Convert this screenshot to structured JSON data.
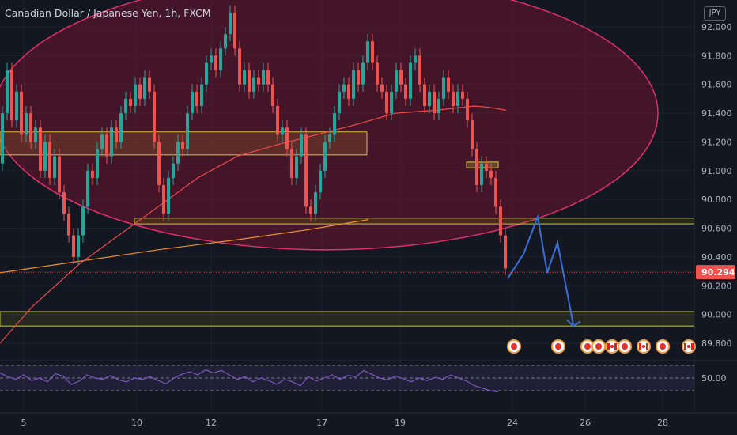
{
  "chart_data": {
    "type": "candlestick",
    "title": "Canadian Dollar / Japanese Yen, 1h, FXCM",
    "currency": "JPY",
    "price_axis": {
      "ticks": [
        92.0,
        91.8,
        91.6,
        91.4,
        91.2,
        91.0,
        90.8,
        90.6,
        90.4,
        90.2,
        90.0,
        89.8
      ],
      "tick_labels": [
        "92.000",
        "91.800",
        "91.600",
        "91.400",
        "91.200",
        "91.000",
        "90.800",
        "90.600",
        "90.400",
        "90.200",
        "90.000",
        "89.800"
      ],
      "range": [
        89.68,
        92.3
      ]
    },
    "time_axis": {
      "labels": [
        "5",
        "10",
        "12",
        "17",
        "19",
        "24",
        "26",
        "28"
      ]
    },
    "last_price": 90.294,
    "last_price_label": "90.294",
    "price_series": [
      [
        0,
        91.05
      ],
      [
        6,
        91.4
      ],
      [
        12,
        91.7
      ],
      [
        18,
        91.35
      ],
      [
        24,
        91.55
      ],
      [
        30,
        91.25
      ],
      [
        36,
        91.4
      ],
      [
        42,
        91.2
      ],
      [
        48,
        91.3
      ],
      [
        54,
        91.0
      ],
      [
        60,
        91.2
      ],
      [
        66,
        90.95
      ],
      [
        72,
        91.1
      ],
      [
        78,
        90.85
      ],
      [
        84,
        90.7
      ],
      [
        90,
        90.55
      ],
      [
        96,
        90.4
      ],
      [
        102,
        90.55
      ],
      [
        108,
        90.75
      ],
      [
        114,
        91.0
      ],
      [
        120,
        90.95
      ],
      [
        126,
        91.15
      ],
      [
        132,
        91.25
      ],
      [
        138,
        91.1
      ],
      [
        144,
        91.3
      ],
      [
        150,
        91.2
      ],
      [
        156,
        91.4
      ],
      [
        162,
        91.5
      ],
      [
        168,
        91.45
      ],
      [
        174,
        91.6
      ],
      [
        180,
        91.5
      ],
      [
        186,
        91.65
      ],
      [
        192,
        91.55
      ],
      [
        198,
        91.2
      ],
      [
        204,
        90.9
      ],
      [
        210,
        90.7
      ],
      [
        216,
        90.95
      ],
      [
        222,
        91.05
      ],
      [
        228,
        91.2
      ],
      [
        234,
        91.15
      ],
      [
        240,
        91.4
      ],
      [
        246,
        91.55
      ],
      [
        252,
        91.45
      ],
      [
        258,
        91.6
      ],
      [
        264,
        91.75
      ],
      [
        270,
        91.8
      ],
      [
        276,
        91.7
      ],
      [
        282,
        91.85
      ],
      [
        288,
        91.95
      ],
      [
        294,
        92.1
      ],
      [
        300,
        91.85
      ],
      [
        306,
        91.6
      ],
      [
        312,
        91.7
      ],
      [
        318,
        91.55
      ],
      [
        324,
        91.65
      ],
      [
        330,
        91.6
      ],
      [
        336,
        91.7
      ],
      [
        342,
        91.6
      ],
      [
        348,
        91.45
      ],
      [
        354,
        91.25
      ],
      [
        360,
        91.3
      ],
      [
        366,
        91.15
      ],
      [
        372,
        90.95
      ],
      [
        378,
        91.1
      ],
      [
        384,
        91.25
      ],
      [
        390,
        90.75
      ],
      [
        396,
        90.7
      ],
      [
        402,
        90.85
      ],
      [
        408,
        91.0
      ],
      [
        414,
        91.2
      ],
      [
        420,
        91.25
      ],
      [
        426,
        91.4
      ],
      [
        432,
        91.55
      ],
      [
        438,
        91.6
      ],
      [
        444,
        91.5
      ],
      [
        450,
        91.7
      ],
      [
        456,
        91.6
      ],
      [
        462,
        91.75
      ],
      [
        468,
        91.9
      ],
      [
        474,
        91.75
      ],
      [
        480,
        91.6
      ],
      [
        486,
        91.55
      ],
      [
        492,
        91.4
      ],
      [
        498,
        91.55
      ],
      [
        504,
        91.7
      ],
      [
        510,
        91.6
      ],
      [
        516,
        91.5
      ],
      [
        522,
        91.75
      ],
      [
        528,
        91.8
      ],
      [
        534,
        91.6
      ],
      [
        540,
        91.45
      ],
      [
        546,
        91.55
      ],
      [
        552,
        91.4
      ],
      [
        558,
        91.5
      ],
      [
        564,
        91.65
      ],
      [
        570,
        91.55
      ],
      [
        576,
        91.45
      ],
      [
        582,
        91.55
      ],
      [
        588,
        91.5
      ],
      [
        594,
        91.35
      ],
      [
        600,
        91.15
      ],
      [
        606,
        90.9
      ],
      [
        612,
        91.05
      ],
      [
        618,
        91.0
      ],
      [
        624,
        90.95
      ],
      [
        630,
        90.75
      ],
      [
        636,
        90.55
      ],
      [
        642,
        90.32
      ]
    ],
    "moving_average_red": [
      [
        0,
        89.8
      ],
      [
        40,
        90.05
      ],
      [
        100,
        90.35
      ],
      [
        150,
        90.55
      ],
      [
        200,
        90.75
      ],
      [
        250,
        90.95
      ],
      [
        300,
        91.1
      ],
      [
        350,
        91.18
      ],
      [
        400,
        91.25
      ],
      [
        450,
        91.32
      ],
      [
        500,
        91.4
      ],
      [
        550,
        91.42
      ],
      [
        600,
        91.45
      ],
      [
        620,
        91.44
      ],
      [
        640,
        91.42
      ]
    ],
    "moving_average_orange": [
      [
        0,
        90.29
      ],
      [
        100,
        90.37
      ],
      [
        200,
        90.45
      ],
      [
        300,
        90.52
      ],
      [
        390,
        90.59
      ],
      [
        466,
        90.66
      ]
    ],
    "projection_path": [
      [
        642,
        90.25
      ],
      [
        662,
        90.42
      ],
      [
        680,
        90.68
      ],
      [
        692,
        90.29
      ],
      [
        705,
        90.5
      ],
      [
        725,
        89.93
      ]
    ],
    "zones": [
      {
        "name": "upper-zone",
        "x": [
          0,
          464
        ],
        "y": [
          91.11,
          91.27
        ]
      },
      {
        "name": "resistance-band",
        "x": [
          170,
          878
        ],
        "y": [
          90.63,
          90.67
        ]
      },
      {
        "name": "support-band",
        "x": [
          0,
          878
        ],
        "y": [
          89.92,
          90.02
        ]
      },
      {
        "name": "small-marker",
        "x": [
          590,
          630
        ],
        "y": [
          91.02,
          91.06
        ]
      }
    ],
    "ellipse": {
      "center_x": 412,
      "center_y_price": 91.4,
      "rx": 420,
      "ry_price": 0.95
    },
    "rsi": {
      "label": "50.00",
      "levels": [
        70,
        50,
        30
      ],
      "values": [
        [
          0,
          58
        ],
        [
          10,
          52
        ],
        [
          20,
          48
        ],
        [
          30,
          55
        ],
        [
          40,
          46
        ],
        [
          50,
          50
        ],
        [
          60,
          44
        ],
        [
          70,
          57
        ],
        [
          80,
          53
        ],
        [
          90,
          40
        ],
        [
          100,
          45
        ],
        [
          110,
          55
        ],
        [
          120,
          50
        ],
        [
          130,
          48
        ],
        [
          140,
          54
        ],
        [
          150,
          47
        ],
        [
          160,
          44
        ],
        [
          170,
          50
        ],
        [
          180,
          48
        ],
        [
          190,
          52
        ],
        [
          200,
          46
        ],
        [
          210,
          41
        ],
        [
          220,
          50
        ],
        [
          230,
          56
        ],
        [
          240,
          60
        ],
        [
          250,
          55
        ],
        [
          260,
          63
        ],
        [
          270,
          58
        ],
        [
          280,
          62
        ],
        [
          290,
          55
        ],
        [
          300,
          48
        ],
        [
          310,
          52
        ],
        [
          320,
          44
        ],
        [
          330,
          50
        ],
        [
          340,
          46
        ],
        [
          350,
          40
        ],
        [
          360,
          48
        ],
        [
          370,
          44
        ],
        [
          380,
          38
        ],
        [
          390,
          52
        ],
        [
          400,
          45
        ],
        [
          410,
          50
        ],
        [
          420,
          55
        ],
        [
          430,
          48
        ],
        [
          440,
          54
        ],
        [
          450,
          52
        ],
        [
          460,
          62
        ],
        [
          470,
          56
        ],
        [
          480,
          50
        ],
        [
          490,
          47
        ],
        [
          500,
          53
        ],
        [
          510,
          49
        ],
        [
          520,
          44
        ],
        [
          530,
          50
        ],
        [
          540,
          46
        ],
        [
          550,
          51
        ],
        [
          560,
          48
        ],
        [
          570,
          55
        ],
        [
          580,
          50
        ],
        [
          590,
          45
        ],
        [
          600,
          38
        ],
        [
          610,
          34
        ],
        [
          620,
          30
        ],
        [
          630,
          28
        ]
      ]
    },
    "event_markers": [
      {
        "x": 650,
        "type": "red-circle"
      },
      {
        "x": 706,
        "type": "red-circle"
      },
      {
        "x": 743,
        "type": "red-circle"
      },
      {
        "x": 757,
        "type": "red-circle"
      },
      {
        "x": 774,
        "type": "canada-flag"
      },
      {
        "x": 790,
        "type": "red-circle"
      },
      {
        "x": 814,
        "type": "canada-flag"
      },
      {
        "x": 838,
        "type": "red-circle"
      },
      {
        "x": 871,
        "type": "canada-flag"
      }
    ]
  }
}
